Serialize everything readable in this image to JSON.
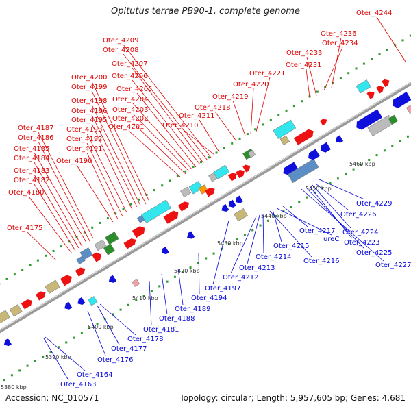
{
  "title": "Opitutus terrae PB90-1, complete genome",
  "accession": "Accession: NC_010571",
  "topology": "Topology: circular; Length: 5,957,605 bp; Genes: 4,681",
  "colors": {
    "plus_label": "#e00000",
    "minus_label": "#0000dd",
    "red": "#ee1111",
    "blue": "#1010dd",
    "cyan": "#33e6ee",
    "steel": "#5a8ec4",
    "green": "#2a8f2a",
    "olive": "#c8b878",
    "gray": "#bbbbbb",
    "orange": "#ff9900",
    "pink": "#f2a0a8",
    "tick": "#2f9a2f"
  },
  "kbp_ticks": [
    "5380 kbp",
    "5390 kbp",
    "5400 kbp",
    "5410 kbp",
    "5420 kbp",
    "5430 kbp",
    "5440 kbp",
    "5450 kbp",
    "5460 kbp"
  ],
  "plus_labels": [
    "Oter_4244",
    "Oter_4236",
    "Oter_4234",
    "Oter_4233",
    "Oter_4231",
    "Oter_4221",
    "Oter_4220",
    "Oter_4219",
    "Oter_4218",
    "Oter_4211",
    "Oter_4210",
    "Oter_4209",
    "Oter_4208",
    "Oter_4207",
    "Oter_4206",
    "Oter_4205",
    "Oter_4204",
    "Oter_4203",
    "Oter_4202",
    "Oter_4201",
    "Oter_4200",
    "Oter_4199",
    "Oter_4198",
    "Oter_4196",
    "Oter_4195",
    "Oter_4193",
    "Oter_4192",
    "Oter_4191",
    "Oter_4190",
    "Oter_4187",
    "Oter_4186",
    "Oter_4185",
    "Oter_4184",
    "Oter_4183",
    "Oter_4182",
    "Oter_4180",
    "Oter_4175"
  ],
  "minus_labels": [
    "Oter_4229",
    "Oter_4226",
    "Oter_4224",
    "Oter_4223",
    "Oter_4225",
    "Oter_4227",
    "Oter_4217",
    "ureC",
    "Oter_4215",
    "Oter_4216",
    "Oter_4214",
    "Oter_4213",
    "Oter_4212",
    "Oter_4197",
    "Oter_4194",
    "Oter_4189",
    "Oter_4188",
    "Oter_4181",
    "Oter_4178",
    "Oter_4177",
    "Oter_4176",
    "Oter_4164",
    "Oter_4163"
  ]
}
